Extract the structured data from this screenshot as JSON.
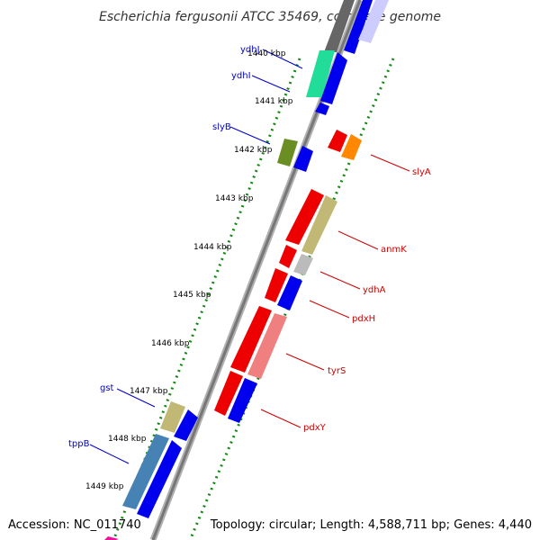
{
  "title": "Escherichia fergusonii ATCC 35469, complete genome",
  "accession": "Accession: NC_011740",
  "summary": "Topology: circular; Length: 4,588,711 bp; Genes: 4,440",
  "colors": {
    "reverse_label": "#0000cc",
    "forward_label": "#cc0000",
    "backbone": "#8a8a8a",
    "gc_dots": "#118811"
  },
  "ticks": [
    {
      "label": "1440 kbp"
    },
    {
      "label": "1441 kbp"
    },
    {
      "label": "1442 kbp"
    },
    {
      "label": "1443 kbp"
    },
    {
      "label": "1444 kbp"
    },
    {
      "label": "1445 kbp"
    },
    {
      "label": "1446 kbp"
    },
    {
      "label": "1447 kbp"
    },
    {
      "label": "1448 kbp"
    },
    {
      "label": "1449 kbp"
    }
  ],
  "reverse_labels": [
    {
      "name": "ydhJ"
    },
    {
      "name": "ydhI"
    },
    {
      "name": "slyB"
    },
    {
      "name": "gst"
    },
    {
      "name": "tppB"
    }
  ],
  "forward_labels": [
    {
      "name": "slyA"
    },
    {
      "name": "anmK"
    },
    {
      "name": "ydhA"
    },
    {
      "name": "pdxH"
    },
    {
      "name": "tyrS"
    },
    {
      "name": "pdxY"
    }
  ]
}
